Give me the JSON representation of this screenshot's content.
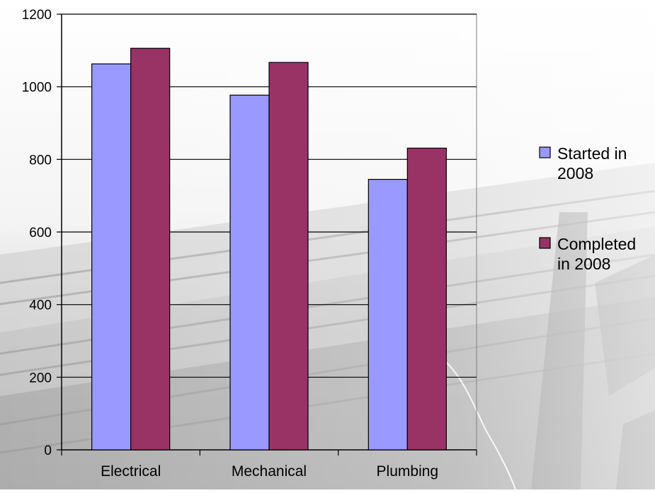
{
  "chart_data": {
    "type": "bar",
    "categories": [
      "Electrical",
      "Mechanical",
      "Plumbing"
    ],
    "series": [
      {
        "name": "Started in 2008",
        "name_lines": [
          "Started in",
          "2008"
        ],
        "values": [
          1063,
          977,
          745
        ],
        "color": "#9999ff"
      },
      {
        "name": "Completed in 2008",
        "name_lines": [
          "Completed",
          "in 2008"
        ],
        "values": [
          1106,
          1067,
          831
        ],
        "color": "#993366"
      }
    ],
    "yticks": [
      0,
      200,
      400,
      600,
      800,
      1000,
      1200
    ],
    "ylim": [
      0,
      1200
    ],
    "grid": true,
    "legend_position": "right",
    "background": "photo of construction steel deck framing (faded)"
  }
}
